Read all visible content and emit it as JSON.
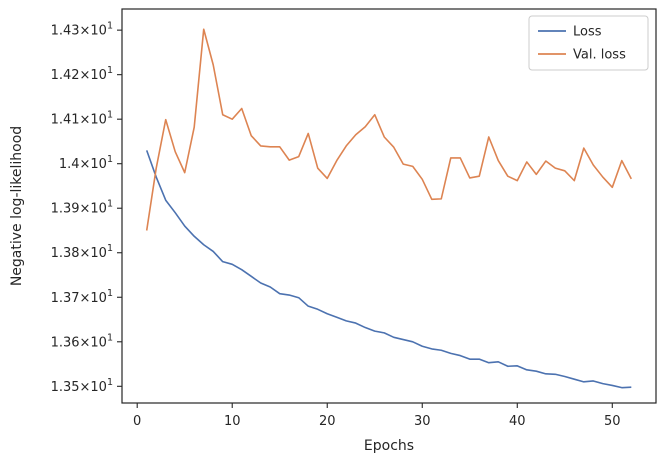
{
  "chart_data": {
    "type": "line",
    "xlabel": "Epochs",
    "ylabel": "Negative log-likelihood",
    "xlim": [
      -1,
      54.6
    ],
    "ylim": [
      13.46,
      13.435
    ],
    "ylim_note_removed": true,
    "x_ticks": [
      0,
      10,
      20,
      30,
      40,
      50
    ],
    "x_tick_labels": [
      "0",
      "10",
      "20",
      "30",
      "40",
      "50"
    ],
    "y_ticks": [
      13.5,
      13.6,
      13.7,
      13.8,
      13.9,
      14.0,
      14.1,
      14.2,
      14.3
    ],
    "y_tick_labels": [
      {
        "mant": "1.35",
        "exp": "1"
      },
      {
        "mant": "1.36",
        "exp": "1"
      },
      {
        "mant": "1.37",
        "exp": "1"
      },
      {
        "mant": "1.38",
        "exp": "1"
      },
      {
        "mant": "1.39",
        "exp": "1"
      },
      {
        "mant": "1.4",
        "exp": "1"
      },
      {
        "mant": "1.41",
        "exp": "1"
      },
      {
        "mant": "1.42",
        "exp": "1"
      },
      {
        "mant": "1.43",
        "exp": "1"
      }
    ],
    "legend_position": "top-right",
    "x": [
      1,
      2,
      3,
      4,
      5,
      6,
      7,
      8,
      9,
      10,
      11,
      12,
      13,
      14,
      15,
      16,
      17,
      18,
      19,
      20,
      21,
      22,
      23,
      24,
      25,
      26,
      27,
      28,
      29,
      30,
      31,
      32,
      33,
      34,
      35,
      36,
      37,
      38,
      39,
      40,
      41,
      42,
      43,
      44,
      45,
      46,
      47,
      48,
      49,
      50,
      51,
      52
    ],
    "series": [
      {
        "name": "Loss",
        "color": "#4c72b0",
        "values": [
          14.03,
          13.97,
          13.918,
          13.89,
          13.86,
          13.837,
          13.818,
          13.803,
          13.78,
          13.774,
          13.762,
          13.747,
          13.732,
          13.723,
          13.708,
          13.705,
          13.699,
          13.68,
          13.673,
          13.663,
          13.655,
          13.647,
          13.642,
          13.632,
          13.624,
          13.62,
          13.61,
          13.605,
          13.6,
          13.59,
          13.584,
          13.581,
          13.574,
          13.569,
          13.561,
          13.561,
          13.553,
          13.555,
          13.545,
          13.546,
          13.537,
          13.534,
          13.528,
          13.527,
          13.522,
          13.516,
          13.51,
          13.512,
          13.506,
          13.502,
          13.497,
          13.498
        ]
      },
      {
        "name": "Val. loss",
        "color": "#dd8452",
        "values": [
          13.85,
          13.99,
          14.099,
          14.027,
          13.98,
          14.082,
          14.302,
          14.222,
          14.11,
          14.1,
          14.124,
          14.063,
          14.04,
          14.038,
          14.038,
          14.008,
          14.016,
          14.068,
          13.99,
          13.967,
          14.007,
          14.04,
          14.065,
          14.083,
          14.11,
          14.06,
          14.037,
          13.999,
          13.994,
          13.965,
          13.92,
          13.921,
          14.013,
          14.013,
          13.968,
          13.972,
          14.06,
          14.007,
          13.972,
          13.962,
          14.004,
          13.976,
          14.006,
          13.99,
          13.984,
          13.962,
          14.035,
          13.997,
          13.97,
          13.947,
          14.007,
          13.966
        ]
      }
    ]
  }
}
